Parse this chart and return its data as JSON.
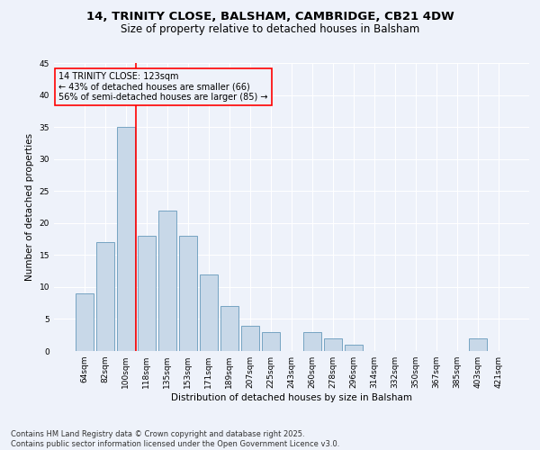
{
  "title_line1": "14, TRINITY CLOSE, BALSHAM, CAMBRIDGE, CB21 4DW",
  "title_line2": "Size of property relative to detached houses in Balsham",
  "xlabel": "Distribution of detached houses by size in Balsham",
  "ylabel": "Number of detached properties",
  "footer_line1": "Contains HM Land Registry data © Crown copyright and database right 2025.",
  "footer_line2": "Contains public sector information licensed under the Open Government Licence v3.0.",
  "annotation_line1": "14 TRINITY CLOSE: 123sqm",
  "annotation_line2": "← 43% of detached houses are smaller (66)",
  "annotation_line3": "56% of semi-detached houses are larger (85) →",
  "categories": [
    "64sqm",
    "82sqm",
    "100sqm",
    "118sqm",
    "135sqm",
    "153sqm",
    "171sqm",
    "189sqm",
    "207sqm",
    "225sqm",
    "243sqm",
    "260sqm",
    "278sqm",
    "296sqm",
    "314sqm",
    "332sqm",
    "350sqm",
    "367sqm",
    "385sqm",
    "403sqm",
    "421sqm"
  ],
  "values": [
    9,
    17,
    35,
    18,
    22,
    18,
    12,
    7,
    4,
    3,
    0,
    3,
    2,
    1,
    0,
    0,
    0,
    0,
    0,
    2,
    0
  ],
  "bar_color": "#c8d8e8",
  "bar_edge_color": "#6699bb",
  "vline_x": 2.5,
  "vline_color": "red",
  "box_color": "red",
  "ylim": [
    0,
    45
  ],
  "yticks": [
    0,
    5,
    10,
    15,
    20,
    25,
    30,
    35,
    40,
    45
  ],
  "bg_color": "#eef2fa",
  "grid_color": "#ffffff",
  "title_fontsize": 9.5,
  "subtitle_fontsize": 8.5,
  "annotation_fontsize": 7,
  "footer_fontsize": 6,
  "axis_label_fontsize": 7.5,
  "tick_fontsize": 6.5
}
